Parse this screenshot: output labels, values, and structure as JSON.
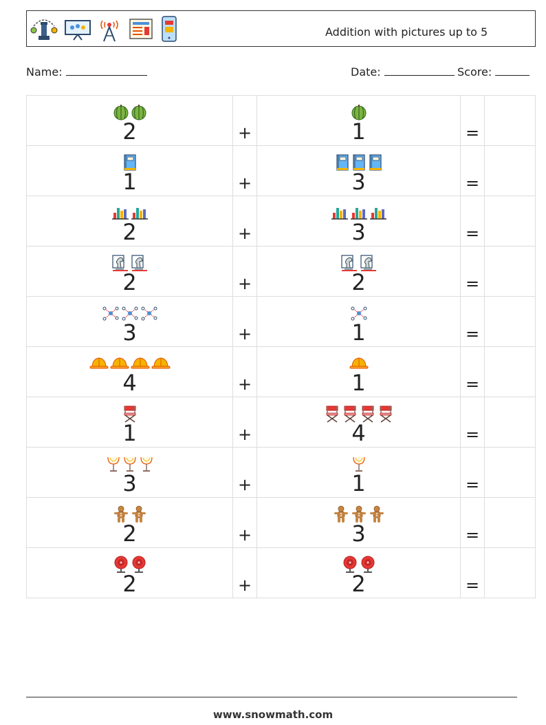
{
  "header": {
    "title": "Addition with pictures up to 5",
    "icons": [
      "chess-strategy-icon",
      "presentation-board-icon",
      "radio-tower-icon",
      "newspaper-icon",
      "mobile-app-icon"
    ]
  },
  "info": {
    "name_label": "Name:",
    "date_label": "Date:",
    "score_label": "Score:"
  },
  "problems": [
    {
      "icon": "watermelon-icon",
      "a": "2",
      "b": "1",
      "plus": "+",
      "equals": "="
    },
    {
      "icon": "notebook-icon",
      "a": "1",
      "b": "3",
      "plus": "+",
      "equals": "="
    },
    {
      "icon": "bar-chart-icon",
      "a": "2",
      "b": "3",
      "plus": "+",
      "equals": "="
    },
    {
      "icon": "chess-knight-icon",
      "a": "2",
      "b": "2",
      "plus": "+",
      "equals": "="
    },
    {
      "icon": "molecule-network-icon",
      "a": "3",
      "b": "1",
      "plus": "+",
      "equals": "="
    },
    {
      "icon": "hard-hat-icon",
      "a": "4",
      "b": "1",
      "plus": "+",
      "equals": "="
    },
    {
      "icon": "director-chair-icon",
      "a": "1",
      "b": "4",
      "plus": "+",
      "equals": "="
    },
    {
      "icon": "goblet-icon",
      "a": "3",
      "b": "1",
      "plus": "+",
      "equals": "="
    },
    {
      "icon": "gingerbread-man-icon",
      "a": "2",
      "b": "3",
      "plus": "+",
      "equals": "="
    },
    {
      "icon": "alarm-bell-icon",
      "a": "2",
      "b": "2",
      "plus": "+",
      "equals": "="
    }
  ],
  "footer": {
    "website": "www.snowmath.com"
  }
}
